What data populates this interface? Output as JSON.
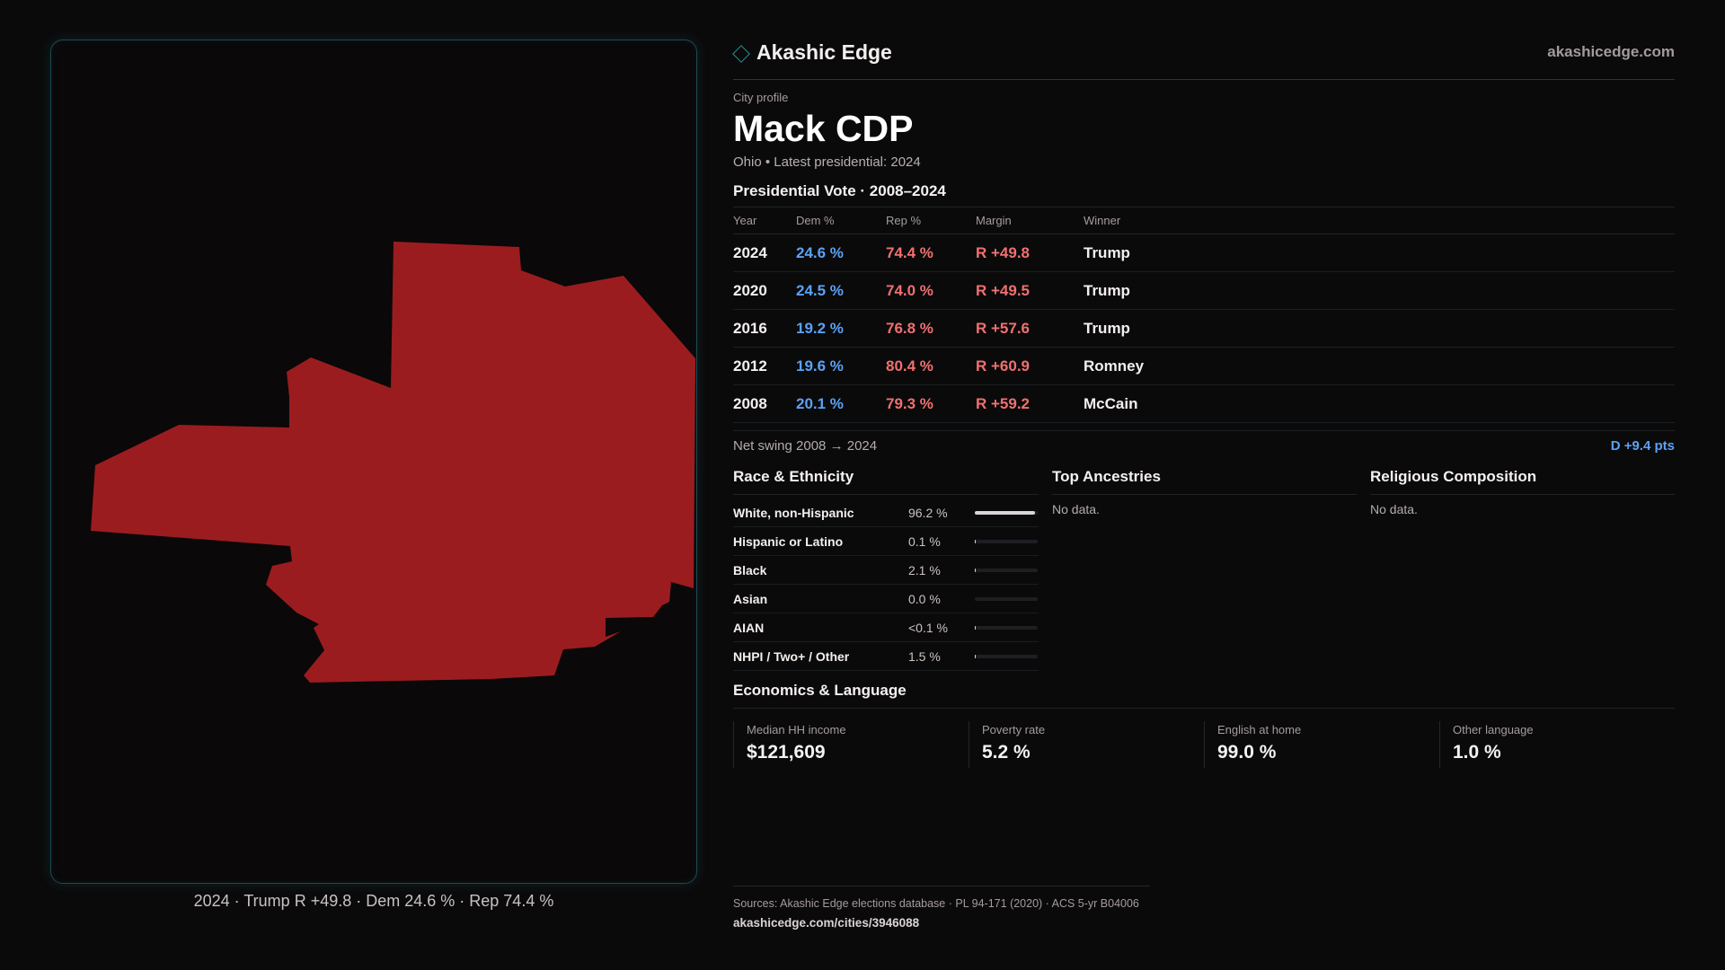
{
  "brand": {
    "name": "Akashic Edge",
    "url": "akashicedge.com"
  },
  "profile": {
    "eyebrow": "City profile",
    "city": "Mack CDP",
    "subline": "Ohio • Latest presidential: 2024"
  },
  "map": {
    "caption": "2024 · Trump R +49.8 · Dem 24.6 % · Rep 74.4 %",
    "fill_color": "#9b1c1f"
  },
  "votes": {
    "title": "Presidential Vote · 2008–2024",
    "headers": {
      "year": "Year",
      "dem": "Dem %",
      "rep": "Rep %",
      "margin": "Margin",
      "winner": "Winner"
    },
    "rows": [
      {
        "year": "2024",
        "dem": "24.6 %",
        "rep": "74.4 %",
        "margin": "R +49.8",
        "winner": "Trump"
      },
      {
        "year": "2020",
        "dem": "24.5 %",
        "rep": "74.0 %",
        "margin": "R +49.5",
        "winner": "Trump"
      },
      {
        "year": "2016",
        "dem": "19.2 %",
        "rep": "76.8 %",
        "margin": "R +57.6",
        "winner": "Trump"
      },
      {
        "year": "2012",
        "dem": "19.6 %",
        "rep": "80.4 %",
        "margin": "R +60.9",
        "winner": "Romney"
      },
      {
        "year": "2008",
        "dem": "20.1 %",
        "rep": "79.3 %",
        "margin": "R +59.2",
        "winner": "McCain"
      }
    ],
    "swing_label": "Net swing 2008 → 2024",
    "swing_value": "D +9.4 pts"
  },
  "race": {
    "title": "Race & Ethnicity",
    "rows": [
      {
        "label": "White, non-Hispanic",
        "value": "96.2 %",
        "share": 0.962
      },
      {
        "label": "Hispanic or Latino",
        "value": "0.1 %",
        "share": 0.001
      },
      {
        "label": "Black",
        "value": "2.1 %",
        "share": 0.021
      },
      {
        "label": "Asian",
        "value": "0.0 %",
        "share": 0.0
      },
      {
        "label": "AIAN",
        "value": "<0.1 %",
        "share": 0.0005
      },
      {
        "label": "NHPI / Two+ / Other",
        "value": "1.5 %",
        "share": 0.015
      }
    ]
  },
  "ancestries": {
    "title": "Top Ancestries",
    "empty": "No data."
  },
  "religion": {
    "title": "Religious Composition",
    "empty": "No data."
  },
  "economics": {
    "title": "Economics & Language",
    "cells": [
      {
        "label": "Median HH income",
        "value": "$121,609"
      },
      {
        "label": "Poverty rate",
        "value": "5.2 %"
      },
      {
        "label": "English at home",
        "value": "99.0 %"
      },
      {
        "label": "Other language",
        "value": "1.0 %"
      }
    ]
  },
  "sources": {
    "text": "Sources: Akashic Edge elections database · PL 94-171 (2020) · ACS 5-yr B04006",
    "url": "akashicedge.com/cities/3946088"
  },
  "colors": {
    "dem": "#5aa2f5",
    "rep": "#f07070",
    "map_fill": "#9b1c1f",
    "panel_border": "#1d4a4f"
  }
}
